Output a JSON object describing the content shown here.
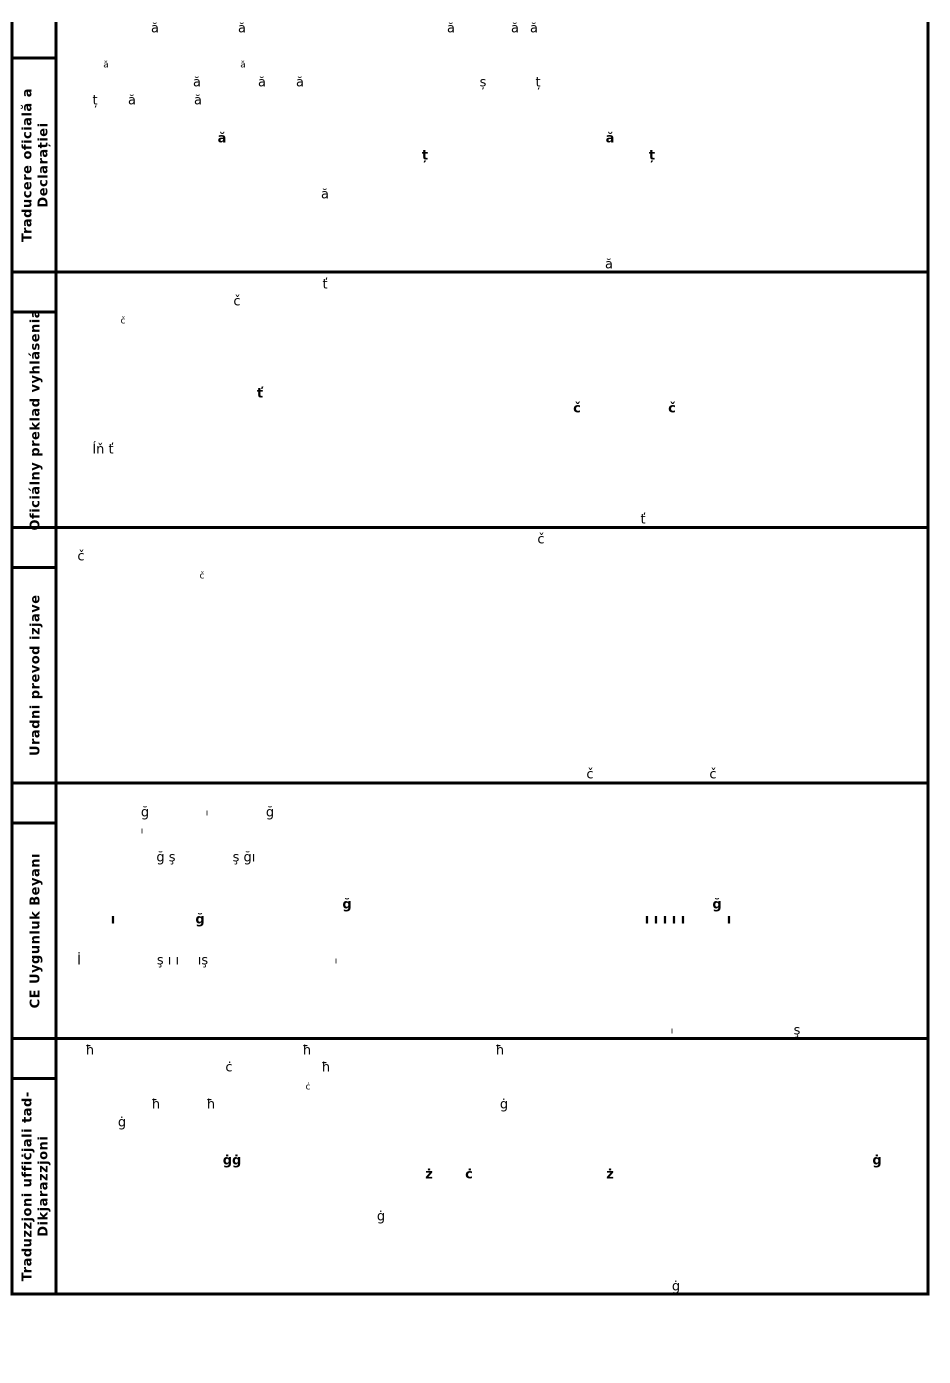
{
  "rows": [
    {
      "label": [
        "Traducere oficială a",
        "Declarației"
      ],
      "glyphs": [
        "ă",
        "ă",
        "ă",
        "ă",
        "ă",
        "ă",
        "ă",
        "ă",
        "ă",
        "ă",
        "ș",
        "ț",
        "ț",
        "ă",
        "ă",
        "ă",
        "ă",
        "ț",
        "ț",
        "ă",
        "ă"
      ]
    },
    {
      "label": [
        "Oficiálny preklad vyhlásenia"
      ],
      "glyphs": [
        "ť",
        "č",
        "č",
        "ť",
        "č",
        "č",
        "Íň ť",
        "ť"
      ]
    },
    {
      "label": [
        "Uradni prevod izjave"
      ],
      "glyphs": [
        "č",
        "č",
        "č",
        "č",
        "č"
      ]
    },
    {
      "label": [
        "CE Uygunluk Beyanı"
      ],
      "glyphs": [
        "ğ",
        "ı",
        "ğ",
        "ı",
        "ğ ş",
        "ş ğı",
        "ğ",
        "ğ",
        "ı",
        "ğ",
        "ı ı ı ı ı",
        "ı",
        "İ",
        "ş ı ı",
        "ış",
        "ı",
        "ı",
        "ş"
      ]
    },
    {
      "label": [
        "Traduzzjoni uffiċjali tad-",
        "Dikjarazzjoni"
      ],
      "glyphs": [
        "ħ",
        "ħ",
        "ħ",
        "ċ",
        "ħ",
        "ċ",
        "ħ",
        "ħ",
        "ġ",
        "ġ",
        "ġġ",
        "ġ",
        "ż",
        "ċ",
        "ż",
        "ġ",
        "ġ"
      ]
    }
  ]
}
